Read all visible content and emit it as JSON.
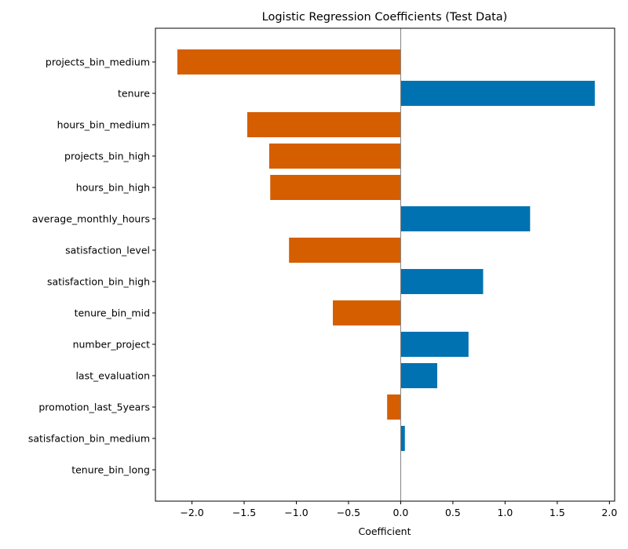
{
  "chart_data": {
    "type": "bar",
    "orientation": "horizontal",
    "title": "Logistic Regression Coefficients (Test Data)",
    "xlabel": "Coefficient",
    "ylabel": "",
    "xlim": [
      -2.35,
      2.05
    ],
    "xticks": [
      -2.0,
      -1.5,
      -1.0,
      -0.5,
      0.0,
      0.5,
      1.0,
      1.5,
      2.0
    ],
    "xtick_labels": [
      "−2.0",
      "−1.5",
      "−1.0",
      "−0.5",
      "0.0",
      "0.5",
      "1.0",
      "1.5",
      "2.0"
    ],
    "grid": false,
    "legend": "none",
    "zero_line": true,
    "colors": {
      "positive": "#0072b2",
      "negative": "#d55e00",
      "zero_line": "#808080",
      "axes": "#000000"
    },
    "categories": [
      "projects_bin_medium",
      "tenure",
      "hours_bin_medium",
      "projects_bin_high",
      "hours_bin_high",
      "average_monthly_hours",
      "satisfaction_level",
      "satisfaction_bin_high",
      "tenure_bin_mid",
      "number_project",
      "last_evaluation",
      "promotion_last_5years",
      "satisfaction_bin_medium",
      "tenure_bin_long"
    ],
    "values": [
      -2.14,
      1.86,
      -1.47,
      -1.26,
      -1.25,
      1.24,
      -1.07,
      0.79,
      -0.65,
      0.65,
      0.35,
      -0.13,
      0.04,
      0.0
    ]
  }
}
